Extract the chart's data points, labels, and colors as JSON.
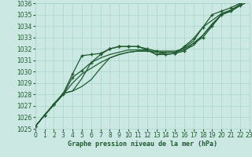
{
  "bg_color": "#cce8e2",
  "grid_color": "#aad4cc",
  "line_color": "#1e5c30",
  "xlabel": "Graphe pression niveau de la mer (hPa)",
  "ylim": [
    1025,
    1036
  ],
  "xlim": [
    0,
    23
  ],
  "ytick_vals": [
    1025,
    1026,
    1027,
    1028,
    1029,
    1030,
    1031,
    1032,
    1033,
    1034,
    1035,
    1036
  ],
  "xtick_vals": [
    0,
    1,
    2,
    3,
    4,
    5,
    6,
    7,
    8,
    9,
    10,
    11,
    12,
    13,
    14,
    15,
    16,
    17,
    18,
    19,
    20,
    21,
    22,
    23
  ],
  "series": [
    {
      "y": [
        1025.2,
        1026.2,
        1027.1,
        1028.0,
        1029.5,
        1030.1,
        1030.8,
        1031.5,
        1032.0,
        1032.2,
        1032.2,
        1032.2,
        1032.0,
        1031.8,
        1031.5,
        1031.6,
        1031.8,
        1032.5,
        1033.0,
        1034.0,
        1035.0,
        1035.3,
        1035.8,
        1036.2
      ],
      "marker": true
    },
    {
      "y": [
        1025.2,
        1026.2,
        1027.1,
        1028.0,
        1029.0,
        1029.8,
        1030.3,
        1030.8,
        1031.2,
        1031.5,
        1031.7,
        1031.8,
        1031.8,
        1031.7,
        1031.7,
        1031.7,
        1031.9,
        1032.3,
        1033.2,
        1034.1,
        1035.0,
        1035.3,
        1035.8,
        1036.2
      ],
      "marker": false
    },
    {
      "y": [
        1025.2,
        1026.2,
        1027.1,
        1028.1,
        1028.3,
        1028.7,
        1029.3,
        1030.3,
        1031.2,
        1031.5,
        1031.7,
        1031.8,
        1031.8,
        1031.8,
        1031.8,
        1031.8,
        1032.0,
        1032.5,
        1033.2,
        1034.2,
        1035.0,
        1035.3,
        1035.8,
        1036.2
      ],
      "marker": false
    },
    {
      "y": [
        1025.2,
        1026.2,
        1027.2,
        1028.1,
        1028.3,
        1029.4,
        1030.8,
        1031.2,
        1031.5,
        1031.7,
        1031.9,
        1031.9,
        1031.9,
        1031.5,
        1031.7,
        1031.7,
        1032.1,
        1032.7,
        1033.9,
        1034.5,
        1035.1,
        1035.4,
        1035.9,
        1036.2
      ],
      "marker": false
    },
    {
      "y": [
        1025.2,
        1026.2,
        1027.1,
        1028.1,
        1029.8,
        1031.4,
        1031.5,
        1031.6,
        1032.0,
        1032.2,
        1032.2,
        1032.2,
        1031.9,
        1031.5,
        1031.5,
        1031.6,
        1032.2,
        1032.9,
        1033.9,
        1035.0,
        1035.3,
        1035.6,
        1036.0,
        1036.2
      ],
      "marker": true
    }
  ],
  "marker_style": "P",
  "marker_size": 3.5,
  "line_width": 0.9,
  "xlabel_fontsize": 6,
  "tick_fontsize": 5.5
}
